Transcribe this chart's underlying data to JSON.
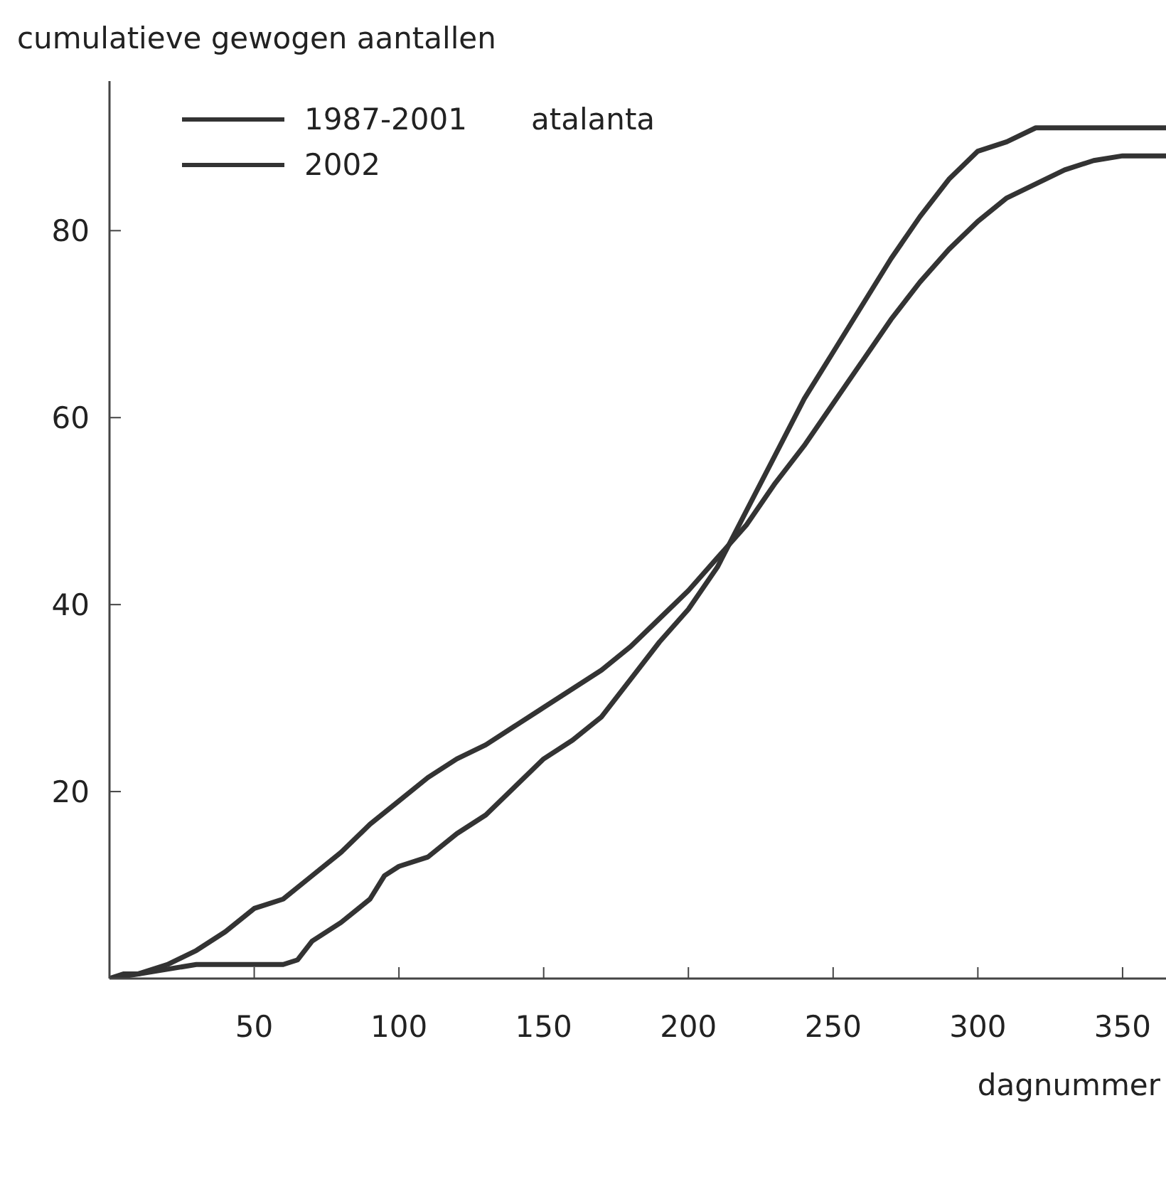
{
  "chart_data": {
    "type": "line",
    "ylabel": "cumulatieve gewogen aantallen",
    "xlabel": "dagnummer",
    "legend_title": "atalanta",
    "legend": "top left",
    "marker": "none",
    "line_style": "solid",
    "xlim": [
      0,
      365
    ],
    "xticks": [
      50,
      100,
      150,
      200,
      250,
      300,
      350
    ],
    "ylim": [
      0,
      96
    ],
    "yticks": [
      20,
      40,
      60,
      80
    ],
    "series": [
      {
        "name": "1987-2001",
        "color": "#333333",
        "x": [
          0,
          10,
          20,
          30,
          40,
          50,
          60,
          70,
          80,
          90,
          100,
          110,
          120,
          130,
          140,
          150,
          160,
          170,
          180,
          190,
          200,
          210,
          220,
          230,
          240,
          250,
          260,
          270,
          280,
          290,
          300,
          310,
          320,
          330,
          340,
          350,
          365
        ],
        "values": [
          0,
          0.5,
          1.5,
          3,
          5,
          7.5,
          8.5,
          11,
          13.5,
          16.5,
          19,
          21.5,
          23.5,
          25,
          27,
          29,
          31,
          33,
          35.5,
          38.5,
          41.5,
          45,
          48.5,
          53,
          57,
          61.5,
          66,
          70.5,
          74.5,
          78,
          81,
          83.5,
          85,
          86.5,
          87.5,
          88,
          88
        ]
      },
      {
        "name": "2002",
        "color": "#333333",
        "x": [
          0,
          5,
          10,
          20,
          30,
          40,
          50,
          60,
          65,
          70,
          80,
          90,
          95,
          100,
          110,
          120,
          130,
          140,
          150,
          160,
          170,
          180,
          190,
          200,
          210,
          220,
          230,
          240,
          250,
          260,
          270,
          280,
          290,
          300,
          310,
          320,
          325,
          365
        ],
        "values": [
          0,
          0.5,
          0.5,
          1,
          1.5,
          1.5,
          1.5,
          1.5,
          2,
          4,
          6,
          8.5,
          11,
          12,
          13,
          15.5,
          17.5,
          20.5,
          23.5,
          25.5,
          28,
          32,
          36,
          39.5,
          44,
          50,
          56,
          62,
          67,
          72,
          77,
          81.5,
          85.5,
          88.5,
          89.5,
          91,
          91,
          91
        ]
      }
    ]
  }
}
